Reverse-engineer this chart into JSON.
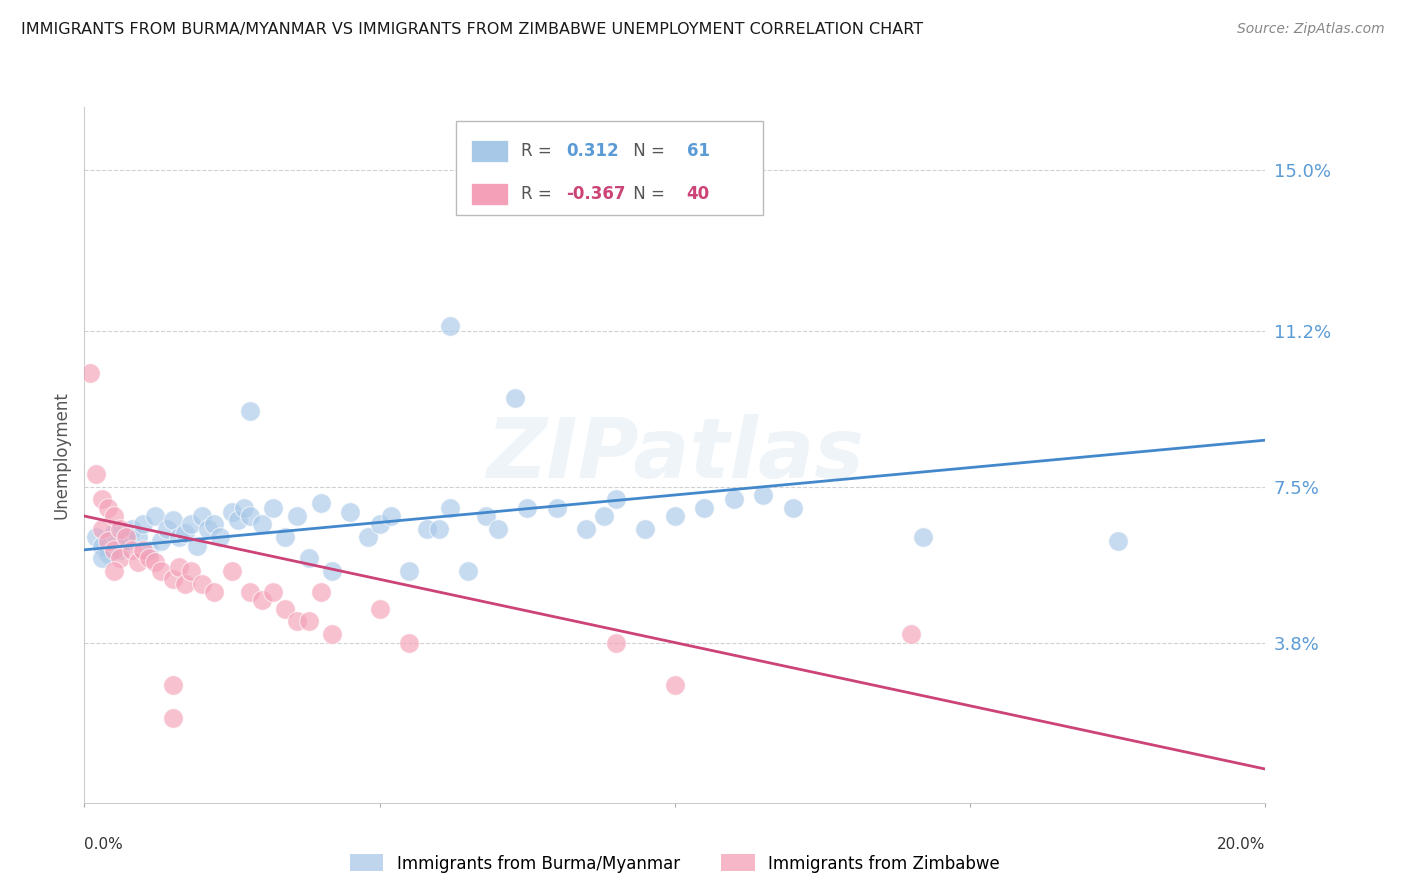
{
  "title": "IMMIGRANTS FROM BURMA/MYANMAR VS IMMIGRANTS FROM ZIMBABWE UNEMPLOYMENT CORRELATION CHART",
  "source": "Source: ZipAtlas.com",
  "ylabel": "Unemployment",
  "yticks": [
    0.038,
    0.075,
    0.112,
    0.15
  ],
  "ytick_labels": [
    "3.8%",
    "7.5%",
    "11.2%",
    "15.0%"
  ],
  "xlim": [
    0.0,
    0.2
  ],
  "ylim": [
    0.0,
    0.165
  ],
  "blue_label": "Immigrants from Burma/Myanmar",
  "pink_label": "Immigrants from Zimbabwe",
  "blue_R": "0.312",
  "blue_N": "61",
  "pink_R": "-0.367",
  "pink_N": "40",
  "blue_color": "#a8c8e8",
  "pink_color": "#f4a0b8",
  "blue_line_color": "#4488cc",
  "pink_line_color": "#cc4477",
  "watermark": "ZIPatlas",
  "background_color": "#ffffff",
  "title_color": "#222222",
  "axis_label_color": "#5b9bd5",
  "blue_scatter": [
    [
      0.002,
      0.063
    ],
    [
      0.003,
      0.061
    ],
    [
      0.004,
      0.059
    ],
    [
      0.005,
      0.064
    ],
    [
      0.006,
      0.06
    ],
    [
      0.007,
      0.062
    ],
    [
      0.008,
      0.065
    ],
    [
      0.009,
      0.063
    ],
    [
      0.01,
      0.066
    ],
    [
      0.011,
      0.06
    ],
    [
      0.012,
      0.068
    ],
    [
      0.013,
      0.062
    ],
    [
      0.014,
      0.065
    ],
    [
      0.015,
      0.067
    ],
    [
      0.016,
      0.063
    ],
    [
      0.017,
      0.064
    ],
    [
      0.018,
      0.066
    ],
    [
      0.019,
      0.061
    ],
    [
      0.02,
      0.068
    ],
    [
      0.021,
      0.065
    ],
    [
      0.022,
      0.066
    ],
    [
      0.023,
      0.063
    ],
    [
      0.025,
      0.069
    ],
    [
      0.026,
      0.067
    ],
    [
      0.027,
      0.07
    ],
    [
      0.028,
      0.068
    ],
    [
      0.03,
      0.066
    ],
    [
      0.032,
      0.07
    ],
    [
      0.034,
      0.063
    ],
    [
      0.036,
      0.068
    ],
    [
      0.038,
      0.058
    ],
    [
      0.04,
      0.071
    ],
    [
      0.042,
      0.055
    ],
    [
      0.045,
      0.069
    ],
    [
      0.048,
      0.063
    ],
    [
      0.05,
      0.066
    ],
    [
      0.052,
      0.068
    ],
    [
      0.055,
      0.055
    ],
    [
      0.058,
      0.065
    ],
    [
      0.06,
      0.065
    ],
    [
      0.062,
      0.07
    ],
    [
      0.065,
      0.055
    ],
    [
      0.068,
      0.068
    ],
    [
      0.07,
      0.065
    ],
    [
      0.075,
      0.07
    ],
    [
      0.08,
      0.07
    ],
    [
      0.085,
      0.065
    ],
    [
      0.088,
      0.068
    ],
    [
      0.09,
      0.072
    ],
    [
      0.095,
      0.065
    ],
    [
      0.1,
      0.068
    ],
    [
      0.105,
      0.07
    ],
    [
      0.11,
      0.072
    ],
    [
      0.115,
      0.073
    ],
    [
      0.12,
      0.07
    ],
    [
      0.062,
      0.113
    ],
    [
      0.028,
      0.093
    ],
    [
      0.073,
      0.096
    ],
    [
      0.175,
      0.062
    ],
    [
      0.142,
      0.063
    ],
    [
      0.003,
      0.058
    ]
  ],
  "pink_scatter": [
    [
      0.001,
      0.102
    ],
    [
      0.002,
      0.078
    ],
    [
      0.003,
      0.072
    ],
    [
      0.003,
      0.065
    ],
    [
      0.004,
      0.07
    ],
    [
      0.004,
      0.062
    ],
    [
      0.005,
      0.068
    ],
    [
      0.005,
      0.06
    ],
    [
      0.006,
      0.065
    ],
    [
      0.006,
      0.058
    ],
    [
      0.007,
      0.063
    ],
    [
      0.008,
      0.06
    ],
    [
      0.009,
      0.057
    ],
    [
      0.01,
      0.06
    ],
    [
      0.011,
      0.058
    ],
    [
      0.012,
      0.057
    ],
    [
      0.013,
      0.055
    ],
    [
      0.015,
      0.053
    ],
    [
      0.016,
      0.056
    ],
    [
      0.017,
      0.052
    ],
    [
      0.018,
      0.055
    ],
    [
      0.02,
      0.052
    ],
    [
      0.022,
      0.05
    ],
    [
      0.025,
      0.055
    ],
    [
      0.028,
      0.05
    ],
    [
      0.03,
      0.048
    ],
    [
      0.032,
      0.05
    ],
    [
      0.034,
      0.046
    ],
    [
      0.036,
      0.043
    ],
    [
      0.038,
      0.043
    ],
    [
      0.04,
      0.05
    ],
    [
      0.042,
      0.04
    ],
    [
      0.05,
      0.046
    ],
    [
      0.055,
      0.038
    ],
    [
      0.09,
      0.038
    ],
    [
      0.1,
      0.028
    ],
    [
      0.14,
      0.04
    ],
    [
      0.005,
      0.055
    ],
    [
      0.015,
      0.028
    ],
    [
      0.015,
      0.02
    ]
  ],
  "blue_slope": 0.13,
  "blue_intercept": 0.06,
  "pink_slope": -0.3,
  "pink_intercept": 0.068
}
